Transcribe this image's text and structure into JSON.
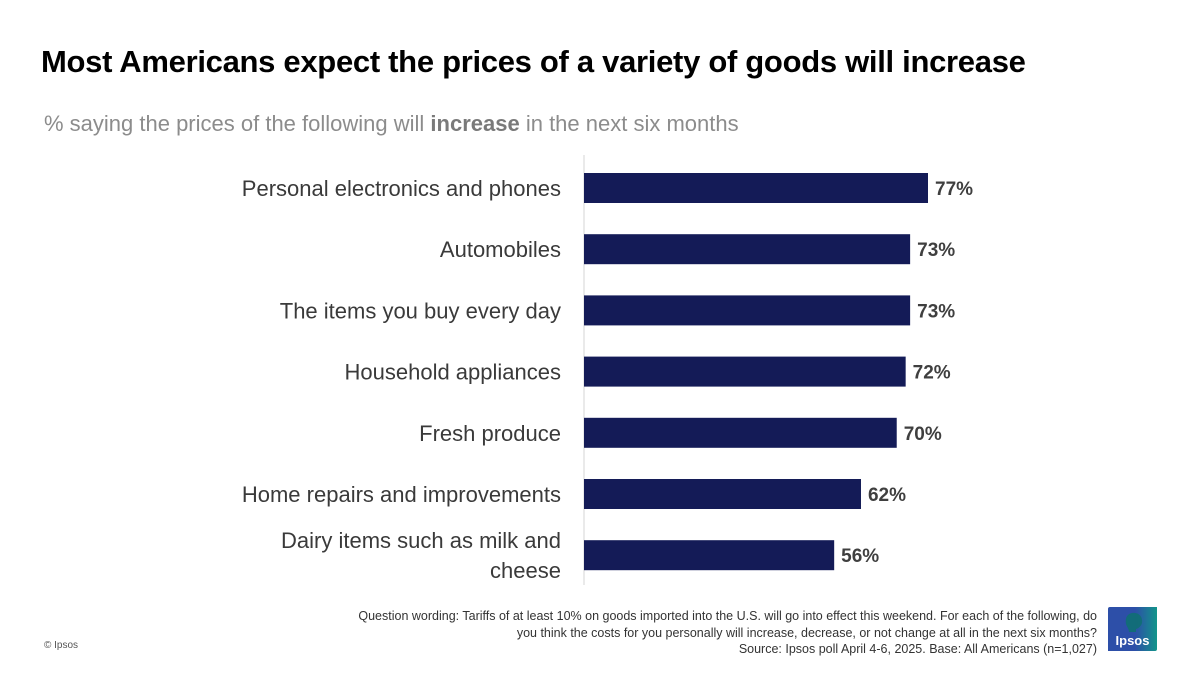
{
  "title": "Most Americans expect the prices of a variety of goods will increase",
  "subtitle": {
    "prefix": "% saying the prices of the following will ",
    "emphasis": "increase",
    "suffix": " in the next six months"
  },
  "chart_data": {
    "type": "bar",
    "orientation": "horizontal",
    "title": "Most Americans expect the prices of a variety of goods will increase",
    "subtitle": "% saying the prices of the following will increase in the next six months",
    "categories": [
      [
        "Personal electronics and phones"
      ],
      [
        "Automobiles"
      ],
      [
        "The items you buy every day"
      ],
      [
        "Household appliances"
      ],
      [
        "Fresh produce"
      ],
      [
        "Home repairs and improvements"
      ],
      [
        "Dairy items such as milk and",
        "cheese"
      ]
    ],
    "values": [
      77,
      73,
      73,
      72,
      70,
      62,
      56
    ],
    "value_labels": [
      "77%",
      "73%",
      "73%",
      "72%",
      "70%",
      "62%",
      "56%"
    ],
    "xlabel": "",
    "ylabel": "",
    "xlim": [
      0,
      100
    ],
    "grid": false,
    "legend": "none",
    "bar_color": "#141b57",
    "axis_color": "#e3e3e3"
  },
  "footnote": {
    "lines": [
      "Question wording: Tariffs of at least 10% on goods imported into the U.S. will go into effect this weekend. For each of the following, do",
      "you think the costs for you personally will increase, decrease, or not change at all in the next six months?",
      "Source: Ipsos poll April 4-6, 2025. Base: All Americans (n=1,027)"
    ]
  },
  "copyright": "© Ipsos",
  "logo": {
    "text": "Ipsos",
    "colors": {
      "blue": "#2d4fa8",
      "teal": "#12958a"
    }
  }
}
